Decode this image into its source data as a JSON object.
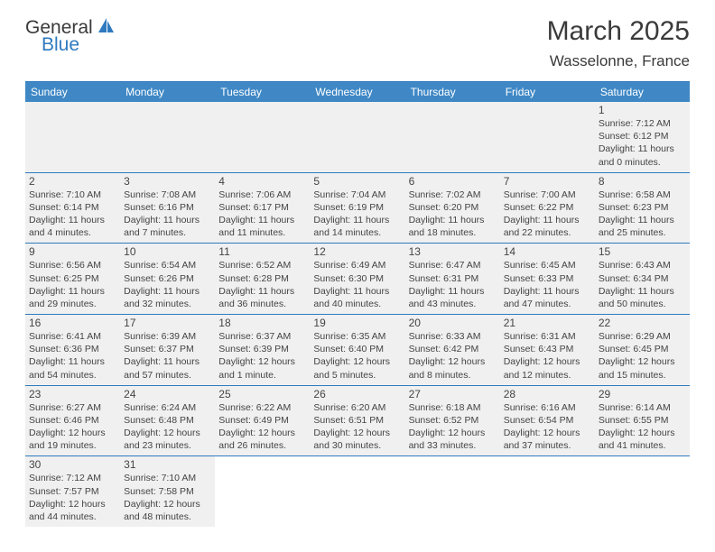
{
  "logo": {
    "text_general": "General",
    "text_blue": "Blue",
    "sail_color": "#2f7abf"
  },
  "header": {
    "month_title": "March 2025",
    "location": "Wasselonne, France"
  },
  "colors": {
    "header_bg": "#3f88c5",
    "border": "#2f7abf",
    "cell_bg": "#f0f0f0",
    "text": "#444444"
  },
  "weekdays": [
    "Sunday",
    "Monday",
    "Tuesday",
    "Wednesday",
    "Thursday",
    "Friday",
    "Saturday"
  ],
  "weeks": [
    [
      {
        "empty": true
      },
      {
        "empty": true
      },
      {
        "empty": true
      },
      {
        "empty": true
      },
      {
        "empty": true
      },
      {
        "empty": true
      },
      {
        "day": "1",
        "sunrise": "Sunrise: 7:12 AM",
        "sunset": "Sunset: 6:12 PM",
        "daylight": "Daylight: 11 hours and 0 minutes."
      }
    ],
    [
      {
        "day": "2",
        "sunrise": "Sunrise: 7:10 AM",
        "sunset": "Sunset: 6:14 PM",
        "daylight": "Daylight: 11 hours and 4 minutes."
      },
      {
        "day": "3",
        "sunrise": "Sunrise: 7:08 AM",
        "sunset": "Sunset: 6:16 PM",
        "daylight": "Daylight: 11 hours and 7 minutes."
      },
      {
        "day": "4",
        "sunrise": "Sunrise: 7:06 AM",
        "sunset": "Sunset: 6:17 PM",
        "daylight": "Daylight: 11 hours and 11 minutes."
      },
      {
        "day": "5",
        "sunrise": "Sunrise: 7:04 AM",
        "sunset": "Sunset: 6:19 PM",
        "daylight": "Daylight: 11 hours and 14 minutes."
      },
      {
        "day": "6",
        "sunrise": "Sunrise: 7:02 AM",
        "sunset": "Sunset: 6:20 PM",
        "daylight": "Daylight: 11 hours and 18 minutes."
      },
      {
        "day": "7",
        "sunrise": "Sunrise: 7:00 AM",
        "sunset": "Sunset: 6:22 PM",
        "daylight": "Daylight: 11 hours and 22 minutes."
      },
      {
        "day": "8",
        "sunrise": "Sunrise: 6:58 AM",
        "sunset": "Sunset: 6:23 PM",
        "daylight": "Daylight: 11 hours and 25 minutes."
      }
    ],
    [
      {
        "day": "9",
        "sunrise": "Sunrise: 6:56 AM",
        "sunset": "Sunset: 6:25 PM",
        "daylight": "Daylight: 11 hours and 29 minutes."
      },
      {
        "day": "10",
        "sunrise": "Sunrise: 6:54 AM",
        "sunset": "Sunset: 6:26 PM",
        "daylight": "Daylight: 11 hours and 32 minutes."
      },
      {
        "day": "11",
        "sunrise": "Sunrise: 6:52 AM",
        "sunset": "Sunset: 6:28 PM",
        "daylight": "Daylight: 11 hours and 36 minutes."
      },
      {
        "day": "12",
        "sunrise": "Sunrise: 6:49 AM",
        "sunset": "Sunset: 6:30 PM",
        "daylight": "Daylight: 11 hours and 40 minutes."
      },
      {
        "day": "13",
        "sunrise": "Sunrise: 6:47 AM",
        "sunset": "Sunset: 6:31 PM",
        "daylight": "Daylight: 11 hours and 43 minutes."
      },
      {
        "day": "14",
        "sunrise": "Sunrise: 6:45 AM",
        "sunset": "Sunset: 6:33 PM",
        "daylight": "Daylight: 11 hours and 47 minutes."
      },
      {
        "day": "15",
        "sunrise": "Sunrise: 6:43 AM",
        "sunset": "Sunset: 6:34 PM",
        "daylight": "Daylight: 11 hours and 50 minutes."
      }
    ],
    [
      {
        "day": "16",
        "sunrise": "Sunrise: 6:41 AM",
        "sunset": "Sunset: 6:36 PM",
        "daylight": "Daylight: 11 hours and 54 minutes."
      },
      {
        "day": "17",
        "sunrise": "Sunrise: 6:39 AM",
        "sunset": "Sunset: 6:37 PM",
        "daylight": "Daylight: 11 hours and 57 minutes."
      },
      {
        "day": "18",
        "sunrise": "Sunrise: 6:37 AM",
        "sunset": "Sunset: 6:39 PM",
        "daylight": "Daylight: 12 hours and 1 minute."
      },
      {
        "day": "19",
        "sunrise": "Sunrise: 6:35 AM",
        "sunset": "Sunset: 6:40 PM",
        "daylight": "Daylight: 12 hours and 5 minutes."
      },
      {
        "day": "20",
        "sunrise": "Sunrise: 6:33 AM",
        "sunset": "Sunset: 6:42 PM",
        "daylight": "Daylight: 12 hours and 8 minutes."
      },
      {
        "day": "21",
        "sunrise": "Sunrise: 6:31 AM",
        "sunset": "Sunset: 6:43 PM",
        "daylight": "Daylight: 12 hours and 12 minutes."
      },
      {
        "day": "22",
        "sunrise": "Sunrise: 6:29 AM",
        "sunset": "Sunset: 6:45 PM",
        "daylight": "Daylight: 12 hours and 15 minutes."
      }
    ],
    [
      {
        "day": "23",
        "sunrise": "Sunrise: 6:27 AM",
        "sunset": "Sunset: 6:46 PM",
        "daylight": "Daylight: 12 hours and 19 minutes."
      },
      {
        "day": "24",
        "sunrise": "Sunrise: 6:24 AM",
        "sunset": "Sunset: 6:48 PM",
        "daylight": "Daylight: 12 hours and 23 minutes."
      },
      {
        "day": "25",
        "sunrise": "Sunrise: 6:22 AM",
        "sunset": "Sunset: 6:49 PM",
        "daylight": "Daylight: 12 hours and 26 minutes."
      },
      {
        "day": "26",
        "sunrise": "Sunrise: 6:20 AM",
        "sunset": "Sunset: 6:51 PM",
        "daylight": "Daylight: 12 hours and 30 minutes."
      },
      {
        "day": "27",
        "sunrise": "Sunrise: 6:18 AM",
        "sunset": "Sunset: 6:52 PM",
        "daylight": "Daylight: 12 hours and 33 minutes."
      },
      {
        "day": "28",
        "sunrise": "Sunrise: 6:16 AM",
        "sunset": "Sunset: 6:54 PM",
        "daylight": "Daylight: 12 hours and 37 minutes."
      },
      {
        "day": "29",
        "sunrise": "Sunrise: 6:14 AM",
        "sunset": "Sunset: 6:55 PM",
        "daylight": "Daylight: 12 hours and 41 minutes."
      }
    ],
    [
      {
        "day": "30",
        "sunrise": "Sunrise: 7:12 AM",
        "sunset": "Sunset: 7:57 PM",
        "daylight": "Daylight: 12 hours and 44 minutes."
      },
      {
        "day": "31",
        "sunrise": "Sunrise: 7:10 AM",
        "sunset": "Sunset: 7:58 PM",
        "daylight": "Daylight: 12 hours and 48 minutes."
      },
      {
        "empty": true
      },
      {
        "empty": true
      },
      {
        "empty": true
      },
      {
        "empty": true
      },
      {
        "empty": true
      }
    ]
  ]
}
